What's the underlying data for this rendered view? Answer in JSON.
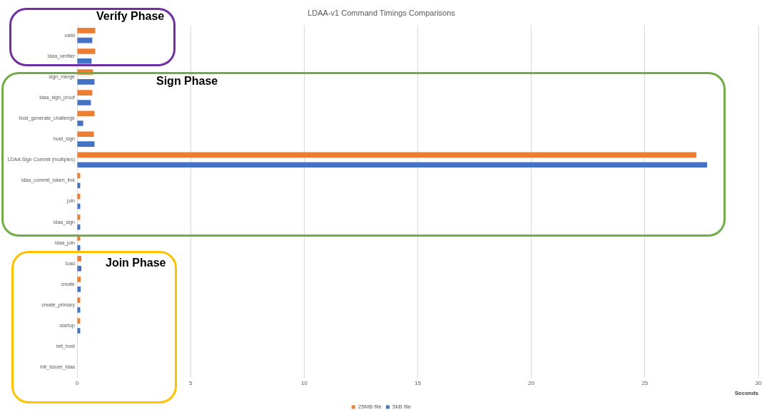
{
  "chart_data": {
    "type": "bar",
    "orientation": "horizontal",
    "title": "LDAA-v1 Command Timings Comparisons",
    "xlabel": "Seconds",
    "categories": [
      "valid",
      "ldaa_verifier",
      "sign_merge",
      "ldaa_sign_proof",
      "host_generate_challenge",
      "host_sign",
      "LDAA Sign Commit (multiples)",
      "ldaa_commit_token_link",
      "join",
      "ldaa_sign",
      "ldaa_join",
      "load",
      "create",
      "create_primary",
      "startup",
      "init_host",
      "init_issuer_ldaa"
    ],
    "series": [
      {
        "name": "25MB file",
        "color": "#ed7d31",
        "values": [
          0.8,
          0.8,
          0.7,
          0.67,
          0.77,
          0.74,
          27.27,
          0.14,
          0.14,
          0.14,
          0.14,
          0.19,
          0.16,
          0.14,
          0.14,
          0,
          0
        ]
      },
      {
        "name": "5kB file",
        "color": "#4472c4",
        "values": [
          0.67,
          0.64,
          0.77,
          0.61,
          0.27,
          0.77,
          27.74,
          0.14,
          0.14,
          0.14,
          0.14,
          0.19,
          0.16,
          0.14,
          0.14,
          0,
          0
        ]
      }
    ],
    "xlim": [
      0,
      30
    ],
    "xticks": [
      0,
      5,
      10,
      15,
      20,
      25,
      30
    ],
    "grid": "x",
    "legend": "bottom",
    "annotations": [
      "Verify Phase",
      "Sign Phase",
      "Join Phase"
    ]
  }
}
